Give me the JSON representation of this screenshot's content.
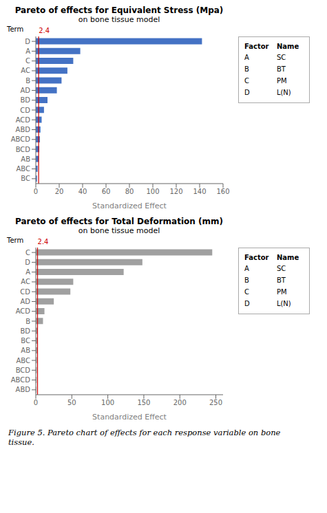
{
  "chart_data": [
    {
      "type": "bar",
      "orientation": "horizontal",
      "title": "Pareto of effects for  Equivalent Stress (Mpa)",
      "subtitle": "on bone tissue model",
      "xlabel": "Standardized Effect",
      "ylabel": "Term",
      "categories": [
        "D",
        "A",
        "C",
        "AC",
        "B",
        "AD",
        "BD",
        "CD",
        "ACD",
        "ABD",
        "ABCD",
        "BCD",
        "AB",
        "ABC",
        "BC"
      ],
      "values": [
        142,
        38,
        32,
        27,
        22,
        18,
        10,
        7,
        5,
        4,
        3.5,
        3,
        2.5,
        1.5,
        1.0
      ],
      "color": "#4472C4",
      "reference_line": {
        "value": 2.4,
        "color": "#CC0000"
      },
      "xlim": [
        0,
        160
      ],
      "xticks": [
        0,
        20,
        40,
        60,
        80,
        100,
        120,
        140,
        160
      ],
      "factor_table": {
        "headers": [
          "Factor",
          "Name"
        ],
        "rows": [
          [
            "A",
            "SC"
          ],
          [
            "B",
            "BT"
          ],
          [
            "C",
            "PM"
          ],
          [
            "D",
            "L(N)"
          ]
        ]
      }
    },
    {
      "type": "bar",
      "orientation": "horizontal",
      "title": "Pareto of effects for Total Deformation (mm)",
      "subtitle": "on bone tissue model",
      "xlabel": "Standardized Effect",
      "ylabel": "Term",
      "categories": [
        "C",
        "D",
        "A",
        "AC",
        "CD",
        "AD",
        "ACD",
        "B",
        "BD",
        "BC",
        "AB",
        "ABC",
        "BCD",
        "ABCD",
        "ABD"
      ],
      "values": [
        245,
        148,
        122,
        52,
        48,
        25,
        12,
        10,
        2.5,
        2.0,
        1.8,
        1.5,
        1.3,
        1.1,
        0.9
      ],
      "color": "#A0A0A0",
      "reference_line": {
        "value": 2.4,
        "color": "#CC0000"
      },
      "xlim": [
        0,
        260
      ],
      "xticks": [
        0,
        50,
        100,
        150,
        200,
        250
      ],
      "factor_table": {
        "headers": [
          "Factor",
          "Name"
        ],
        "rows": [
          [
            "A",
            "SC"
          ],
          [
            "B",
            "BT"
          ],
          [
            "C",
            "PM"
          ],
          [
            "D",
            "L(N)"
          ]
        ]
      }
    }
  ],
  "caption": [
    "Figure 5. Pareto chart of effects for each response variable on bone",
    "tissue."
  ]
}
